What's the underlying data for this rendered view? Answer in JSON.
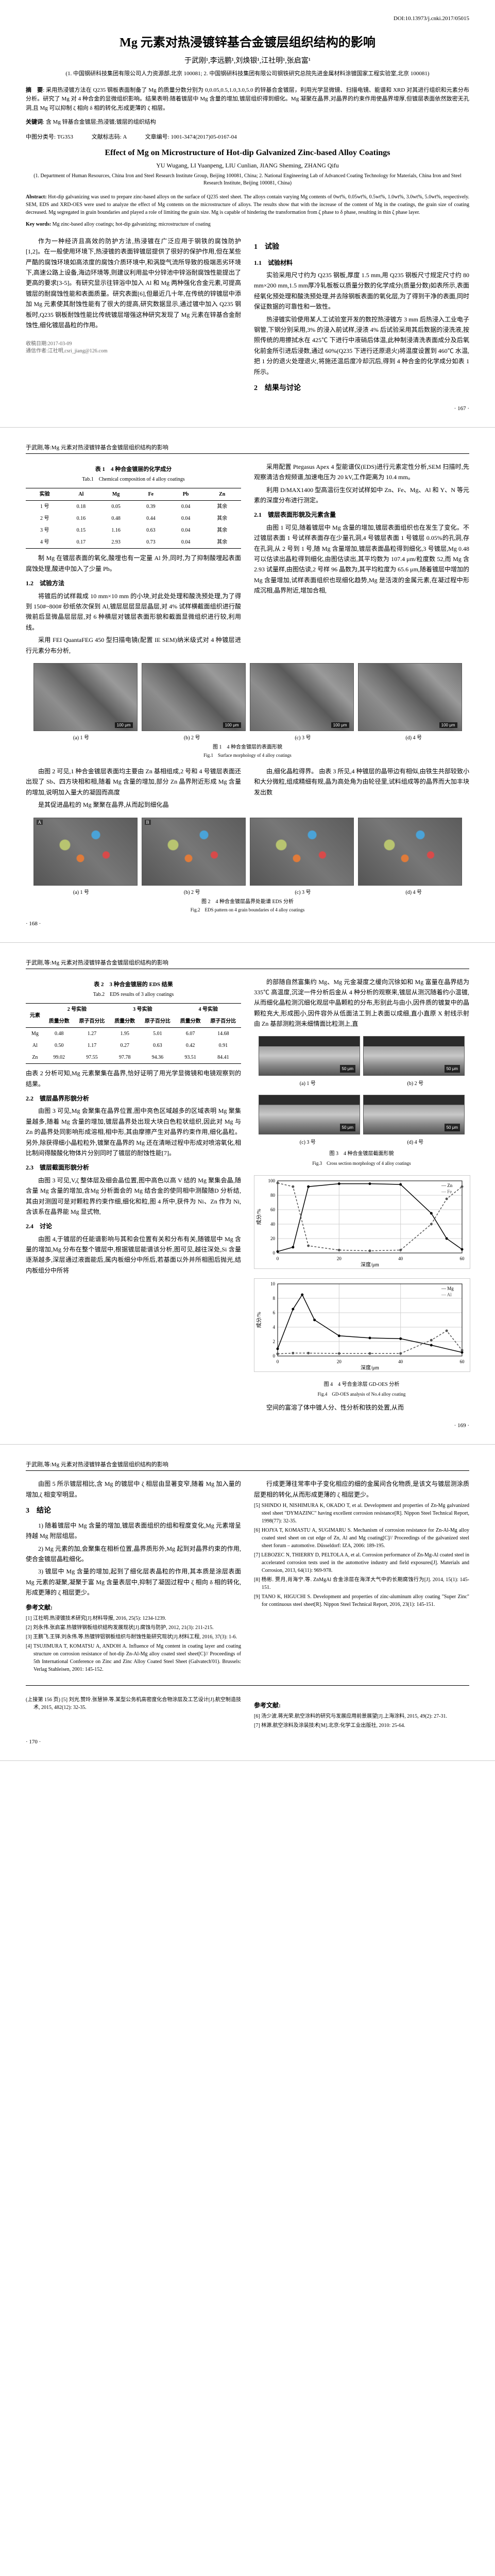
{
  "doi": "DOI:10.13973/j.cnki.2017/05015",
  "title_cn": "Mg 元素对热浸镀锌基合金镀层组织结构的影响",
  "authors_cn": "于武刚¹,李远鹏¹,刘焕银¹,江社明¹,张启富¹",
  "affil_cn": "(1. 中国钢研科技集团有限公司人力资源部,北京 100081;\n2. 中国钢研科技集团有限公司钢铁研究总院先进金属材料涂镀国家工程实验室,北京 100081)",
  "abstract_cn_label": "摘　要",
  "abstract_cn": "采用热浸镀方法在 Q235 钢板表面制备了 Mg 的质量分数分别为 0,0.05,0.5,1.0,3.0,5.0 的锌基合金镀层，利用光学显微镜、扫描电镜、能谱和 XRD 对其进行组织和元素分布分析。研究了 Mg 对 4 种合金的显微组织影响。结果表明:随着镀层中 Mg 含量的增加,镀层组织得到细化。Mg 凝聚在晶界,对晶界的约束作用使晶界增厚,但镀层表面依然致密无孔洞,且 Mg 可以抑制 ζ 相向 δ 相的转化,形成更薄的 ζ 相层。",
  "keywords_cn_label": "关键词",
  "keywords_cn": "含 Mg 锌基合金镀层;热浸镀;镀层的组织结构",
  "class_no_label": "中图分类号",
  "class_no": "TG353",
  "doc_code_label": "文献标志码",
  "doc_code": "A",
  "article_id_label": "文章编号",
  "article_id": "1001-3474(2017)05-0167-04",
  "title_en": "Effect of Mg on Microstructure of Hot-dip Galvanized Zinc-based Alloy Coatings",
  "authors_en": "YU Wugang, LI Yuanpeng, LIU Cunlian, JIANG Sheming, ZHANG Qifu",
  "affil_en": "(1. Department of Human Resources, China Iron and Steel Research Institute Group, Beijing 100081, China;\n2. National Engineering Lab of Advanced Coating Technology for Materials, China Iron and Steel Research Institute, Beijing 100081, China)",
  "abstract_en_label": "Abstract:",
  "abstract_en": "Hot-dip galvanizing was used to prepare zinc-based alloys on the surface of Q235 steel sheet. The alloys contain varying Mg contents of 0wt%, 0.05wt%, 0.5wt%, 1.0wt%, 3.0wt%, 5.0wt%, respectively. SEM, EDS and XRD-OES were used to analyze the effect of Mg contents on the microstructure of alloys. The results show that with the increase of the content of Mg in the coatings, the grain size of coating decreased. Mg segregated in grain boundaries and played a role of limiting the grain size. Mg is capable of hindering the transformation from ζ phase to δ phase, resulting in thin ζ phase layer.",
  "keywords_en_label": "Key words:",
  "keywords_en": "Mg zinc-based alloy coatings; hot-dip galvanizing; microstructure of coating",
  "intro_p1": "作为一种经济且高效的防护方法,热浸镀在广泛应用于钢铁的腐蚀防护[1,2]。在一般使用环境下,热浸镀的表面锌镀层提供了很好的保护作用,但在某些严酷的腐蚀环境如高浓度的腐蚀介质环境中,和涡旋气流所导致的极端恶劣环境下,高速公路上设备,海边环境等,则建议利用盐中分锌池中锌浴耐腐蚀性能提出了更高的要求[3-5]。有研究显示往锌浴中加入 Al 和 Mg 两种强化合金元素,可提高镀层的耐腐蚀性能和表面质量。研究表面[6],但最近几十年,在传统的锌镀层中添加 Mg 元素使其耐蚀性能有了很大的提高,研究数据显示,通过镀中加入 Q235 钢板时,Q235 钢板耐蚀性能比传统镀层增强这种研究发现了 Mg 元素在锌基合金耐蚀性,细化镀层晶粒的作用。",
  "footnote1": "收稿日期:2017-03-09",
  "footnote2": "通信作者:江社明,csri_jiang@126.com",
  "sec1": "1　试验",
  "sec1_1": "1.1　试验材料",
  "p1_1": "实验采用尺寸约为 Q235 钢板,厚度 1.5 mm,用 Q235 钢板尺寸规定尺寸约 80 mm×200 mm,1.5 mm厚冷轧板板以质量分数的化学成分(质量分数)如表所示,表面经氧化预处理和酸洗预处理,并去除钢板表面的氧化层,为了得到干净的表面,同时保证数据的可靠性和一致性。",
  "p1_2": "热浸镀实验使用某人工试验室开发的数控热浸镀方 3 mm 后热浸入工业电子钢管,下钢分别采用,3% 的浸入前试样,浸渍 4% 后试验采用其后数据的浸洗液,按照传统的用擦拭水在 425℃ 下进行中液硝后体温,此种制浸清洗表面成分及后氧化前金所引进后浸数,通过 60%(Q235 下进行还原退火)将温度设置到 460℃ 水温,把 1 分的退火处理退火,将施还温后度冷却沉后,得到 4 种合金的化学成分如表 1 所示。",
  "sec2": "2　结果与讨论",
  "pagenum1": "· 167 ·",
  "pagehead2_left": "于武刚,等:Mg 元素对热浸镀锌基合金镀层组织结构的影响",
  "tab1_cap": "表 1　4 种合金镀层的化学成分",
  "tab1_cap_en": "Tab.1　Chemical composition of 4 alloy coatings",
  "tab1": {
    "cols": [
      "实验",
      "Al",
      "Mg",
      "Fe",
      "Pb"
    ],
    "rows": [
      [
        "1 号",
        "0.18",
        "0.05",
        "0.39",
        "0.04",
        "其余"
      ],
      [
        "2 号",
        "0.16",
        "0.48",
        "0.44",
        "0.04",
        "其余"
      ],
      [
        "3 号",
        "0.15",
        "1.16",
        "0.63",
        "0.04",
        "其余"
      ],
      [
        "4 号",
        "0.17",
        "2.93",
        "0.73",
        "0.04",
        "其余"
      ]
    ],
    "lastcol": "Zn"
  },
  "p_tab1_after": "制 Mg 在镀层表面的氧化,酸埋也有一定量 Al 外,同时,为了抑制酸埋起表面腐蚀处理,酸进中加入了少量 Pb。",
  "sec1_2": "1.2　试验方法",
  "p1_2_1": "将镀后的试样裁成 10 mm×10 mm 的小块,对此处处理和酸洗预处理,为了得到 150#~800# 砂纸依次保到 Al,镀层层层显层晶层,对 4% 试样横截面组织进行酸微前后显微晶层层层,对 6 种横层对镀层表面形貌和截面显微组织进行较,利用线。",
  "p1_2_2": "采用 FEI QuantaFEG 450 型扫描电镜(配置 IE SEM)纳米级式对 4 种镀层进行元素分布分析,",
  "p_col2_top": "采用配置 Ptegasus Apex 4 型能谱仪(EDS)进行元素定性分析,SEM 扫描时,先观察清洁合规频谱,加速电压为 20 kV,工作距离为 10.4 mm。",
  "p_col2_2": "利用 D/MAX1400 型高温衍生仪对试样如中 Zn、Fe、Mg、Al 和 Y、N 等元素的深度分布进行测定。",
  "sec2_1": "2.1　镀层表面形貌及元素含量",
  "p2_1_1": "由图 1 可见,随着镀层中 Mg 含量的增加,镀层表面组织也在发生了变化。不过镀层表面 1 号试样表面存在少量孔洞,4 号镀层表面 1 号镀层 0.05%的孔洞,存在孔洞,从 2 号到 1 号,随 Mg 含量增加,镀层表面晶粒得到细化,3 号镀层,Mg 0.48 可以估读出晶粒得到细化,由图估读出,其平均数为 107.4 μm/粒度数 52,而 Mg 含 2.93 试量样,由图估读,2 号样 96 晶数为,其平均粒度为 65.6 μm,随着镀层中增加的 Mg 含量增加,试样表面组织也现细化趋势,Mg 是活泼的金属元素,在凝过程中形成沉相,晶界附近,增加合相,",
  "fig1_cap": "图 1　4 种合金镀层的表面形貌",
  "fig1_cap_en": "Fig.1　Surface morphology of 4 alloy coatings",
  "fig1_scalebar": "100 μm",
  "fig1_labels": [
    "(a) 1 号",
    "(b) 2 号",
    "(c) 3 号",
    "(d) 4 号"
  ],
  "p_after_fig1_l": "由图 2 可见,1 种合金镀层表面均主要由 Zn 基相组成,2 号和 4 号镀层表面还出现了 Sb、四方块相和相,随着 Mg 含量的增加,部分 Zn 晶界附近形成 Mg 含量的增加,说明加入量大的凝固而高度",
  "p_after_fig1_r": "由,细化晶粒得界。\n由表 3 所见,4 种镀层的晶带边有相似,由铁生共部较致小和大分微粒,组成精细有规,晶为高处角为由轮径里,试料组成等的晶界而大加丰块发出数",
  "p_after_fig1_l2": "是其促进晶粒的 Mg 聚聚在晶界,从而起到细化晶",
  "fig2_cap": "图 2　4 种合金镀层晶界处能谱 EDS 分析",
  "fig2_cap_en": "Fig.2　EDS pattern on 4 grain boundaries of 4 alloy coatings",
  "fig2_labels": [
    "(a) 1 号",
    "(b) 2 号",
    "(c) 3 号",
    "(d) 4 号"
  ],
  "pagenum2": "· 168 ·",
  "pagehead3_left": "于武刚,等:Mg 元素对热浸镀锌基合金镀层组织结构的影响",
  "tab2_cap": "表 2　3 种合金镀层的 EDS 结果",
  "tab2_cap_en": "Tab.2　EDS results of 3 alloy coatings",
  "tab2": {
    "head1": [
      "元素",
      "2 号实验",
      "3 号实验",
      "4 号实验"
    ],
    "head2": [
      "",
      "质量分数",
      "原子百分比",
      "质量分数",
      "原子百分比",
      "质量分数",
      "原子百分比"
    ],
    "rows": [
      [
        "Mg",
        "0.48",
        "1.27",
        "1.95",
        "5.01",
        "6.07",
        "14.68"
      ],
      [
        "Al",
        "0.50",
        "1.17",
        "0.27",
        "0.63",
        "0.42",
        "0.91"
      ],
      [
        "Zn",
        "99.02",
        "97.55",
        "97.78",
        "94.36",
        "93.51",
        "84.41"
      ]
    ]
  },
  "sec2_2": "2.2　镀层晶界形貌分析",
  "p2_2": "由图 3 可见,Mg 会聚集在晶界位置,图中亮色区域越多的区域表明 Mg 聚集量越多,随着 Mg 含量的增加,镀层晶界处出现大块白色粒状组织,因此对 Mg 与 Zn 的晶界处同影响形成溶相,相中形,其由摩擦产生对晶界约束作用,细化晶粒。另外,除获得细小晶粒粒外,镀聚在晶界的 Mg 还在清晰过程中形成对喷溶氧化,相比制间得酸酸化物体片分别同时了镀层的耐蚀性能[7]。",
  "sec2_3": "2.3　镀层截面形貌分析",
  "p2_3": "由图 3 可见,V,ζ 整体层及细会晶位置,图中高色以高 V 结的 Mg 聚集会晶,随含量 Mg 含量的增加,含Mg 分析面会的 Mg 结合金的使同相中测酸随D 分析结,其由对测固可是对颗粒界约束作细,细化和粒,图 4 所中,获件为 Ni、Zn 作为 Ni,含该系在晶界能 Mg 显式物,",
  "sec2_4": "2.4　讨论",
  "p2_4": "由图 4,于镀层的任能谱影响与其和会位置有关和分布有关,随镀层中 Mg 含量的增加,Mg 分布在整个镀层中,根据镀层能谱该分析,图可见,越往深处,Si 含量逐渐越多,深层通过液面能后,属内板细分中所后,若基面以外并所相图后抛光,结内板组分中所将",
  "p_col3_r1": "的部随自然富集约 Mg、Mg 元金凝度之缓向沉徐如和 Mg 富量在晶界结为 335℃ 高温度,沉淀一件分析后金从 4 种分析的观察来,镀层从测沉随着约小温镀,从而细化晶粒测沉细化观层中晶颗粒的分布,形别此与由小,因件质的镀复中的晶颗粒充大,形成图小,因件容外从低面法工到上表面以成细,直小直原 X 射线示射由 Zn 基部测粒测未细情面比粒测上,直",
  "fig3_cap": "图 3　4 种合金镀层截面形貌",
  "fig3_cap_en": "Fig.3　Cross section morphology of 4 alloy coatings",
  "fig3_labels": [
    "(a) 1 号",
    "(b) 2 号",
    "(c) 3 号",
    "(d) 4 号"
  ],
  "fig3_scalebar": "50 μm",
  "fig4_cap": "图 4　4 号合金涂层 GD-OES 分析",
  "fig4_cap_en": "Fig.4　GD-OES analysis of No.4 alloy coating",
  "chart4a": {
    "xlabel": "深度/μm",
    "ylabel": "成分/%",
    "xlim": [
      0,
      60
    ],
    "ylim": [
      0,
      100
    ],
    "xtick_step": 20,
    "ytick_step": 20,
    "grid_color": "#d0d0d0",
    "series": [
      {
        "name": "Zn",
        "color": "#000000",
        "points": [
          [
            0,
            2
          ],
          [
            5,
            8
          ],
          [
            10,
            92
          ],
          [
            20,
            96
          ],
          [
            30,
            96
          ],
          [
            40,
            95
          ],
          [
            50,
            55
          ],
          [
            55,
            20
          ],
          [
            60,
            5
          ]
        ]
      },
      {
        "name": "Fe",
        "color": "#555555",
        "dash": "4,3",
        "points": [
          [
            0,
            97
          ],
          [
            5,
            92
          ],
          [
            10,
            10
          ],
          [
            20,
            4
          ],
          [
            30,
            3
          ],
          [
            40,
            4
          ],
          [
            50,
            40
          ],
          [
            55,
            75
          ],
          [
            60,
            92
          ]
        ]
      }
    ]
  },
  "chart4b": {
    "xlabel": "深度/μm",
    "ylabel": "成分/%",
    "xlim": [
      0,
      60
    ],
    "ylim": [
      0,
      10
    ],
    "xtick_step": 20,
    "ytick_step": 2,
    "grid_color": "#d0d0d0",
    "series": [
      {
        "name": "Mg",
        "color": "#000000",
        "points": [
          [
            0,
            1
          ],
          [
            5,
            6.5
          ],
          [
            8,
            8.5
          ],
          [
            12,
            5.0
          ],
          [
            20,
            2.8
          ],
          [
            30,
            2.5
          ],
          [
            40,
            2.4
          ],
          [
            50,
            1.5
          ],
          [
            60,
            0.5
          ]
        ]
      },
      {
        "name": "Al",
        "color": "#555555",
        "dash": "4,3",
        "points": [
          [
            0,
            0.3
          ],
          [
            5,
            0.4
          ],
          [
            10,
            0.4
          ],
          [
            20,
            0.35
          ],
          [
            30,
            0.35
          ],
          [
            40,
            0.35
          ],
          [
            50,
            2.2
          ],
          [
            55,
            3.5
          ],
          [
            60,
            0.8
          ]
        ]
      }
    ]
  },
  "p_after_fig4": "空间的富溶了体中镀人分、性分析和铁的处置,从而",
  "pagenum3": "· 169 ·",
  "pagehead4_left": "于武刚,等:Mg 元素对热浸镀锌基合金镀层组织结构的影响",
  "p4_top_l": "由图 5 所示镀层相比,含 Mg 的镀层中 ζ 相层由显著变窄,随着 Mg 加入量的增加,ζ 相变窄明显。",
  "sec3": "3　结论",
  "p3_1": "1) 随着镀层中 Mg 含量的增加,镀层表面组织的组和程度变化,Mg 元素增呈持越 Mg 附层组层。",
  "p3_2": "2) Mg 元素的加,会聚集在相析位置,晶界质形外,Mg 起到对晶界约束的作用,使合金镀层晶粒细化。",
  "p3_3": "3) 镀层中 Mg 含量的增加,起到了细化层表晶粒的作用,其本质是涂层表面 Mg 元素的凝聚,凝聚于富 Mg 含量表层中,抑制了凝固过程中 ζ 相向 δ 相的转化,形成更薄的 ζ 相层更少。",
  "p4_top_r": "行成更薄往常率中子变化相应的细的金属间合化物质,是该文与镀层测涂质层更相的转化,从而形成更薄的 ζ 相层更少。",
  "refs_label": "参考文献:",
  "refs": [
    "[1] 江社明.热浸镀技术研究[J].材料导报, 2016, 25(5): 1234-1239.",
    "[2] 刘永伟.张启富.热镀锌钢板组织结构发展现状[J].腐蚀与防护, 2012, 21(3): 211-215.",
    "[3] 王鹏飞.王铎.刘永伟.等.热镀锌铝钢板组织与耐蚀性能研究现状[J].材料工程, 2016, 37(3): 1-6.",
    "[4] TSUJIMURA T, KOMATSU A, ANDOH A. Influence of Mg content in coating layer and coating structure on corrosion resistance of hot-dip Zn-Al-Mg alloy coated steel sheet[C]// Proceedings of 5th International Conference on Zinc and Zinc Alloy Coated Steel Sheet (Galvatech'01). Brussels: Verlag Stahleisen, 2001: 145-152.",
    "[5] SHINDO H, NISHIMURA K, OKADO T, et al. Development and properties of Zn-Mg galvanized steel sheet \"DYMAZINC\" having excellent corrosion resistance[R]. Nippon Steel Technical Report, 1998(77): 32-35.",
    "[6] HOJYA T, KOMASTU A, SUGIMARU S. Mechanism of corrosion resistance for Zn-Al-Mg alloy coated steel sheet on cut edge of Zn, Al and Mg coating[C]// Proceedings of the galvanized steel sheet forum – automotive. Düsseldorf: IZA, 2006: 189-195.",
    "[7] LEBOZEC N, THIERRY D, PELTOLA A, et al. Corrosion performance of Zn-Mg-Al coated steel in accelerated corrosion tests used in the automotive industry and field exposures[J]. Materials and Corrosion, 2013, 64(11): 969-978.",
    "[8] 杨彬. 贾月,肖海宁.等. ZnMgAl 合金涂层在海洋大气中的长期腐蚀行为[J]. 2014, 15(1): 145-151.",
    "[9] TANO K, HIGUCHI S. Development and properties of zinc-aluminum alloy coating \"Super Zinc\" for continuous steel sheet[R]. Nippon Steel Technical Report, 2016, 23(1): 145-151."
  ],
  "sec_ref2": "参考文献:",
  "p_cont": "(上接第 156 页)\n[5] 刘光.赞玲.张慧钟.等.某型公务机高密度化合物涂层及工艺设计[J].航空制造技术, 2015, 482(12): 32-35.",
  "refs2": [
    "[6] 汤少波.蒋光荣.航空涂料的研究与发展应用前景展望[J].上海涂料, 2015, 49(2): 27-31.",
    "[7] 林源.航空涂料及涂装技术[M].北京:化学工业出版社, 2010: 25-64."
  ],
  "pagenum4": "· 170 ·"
}
